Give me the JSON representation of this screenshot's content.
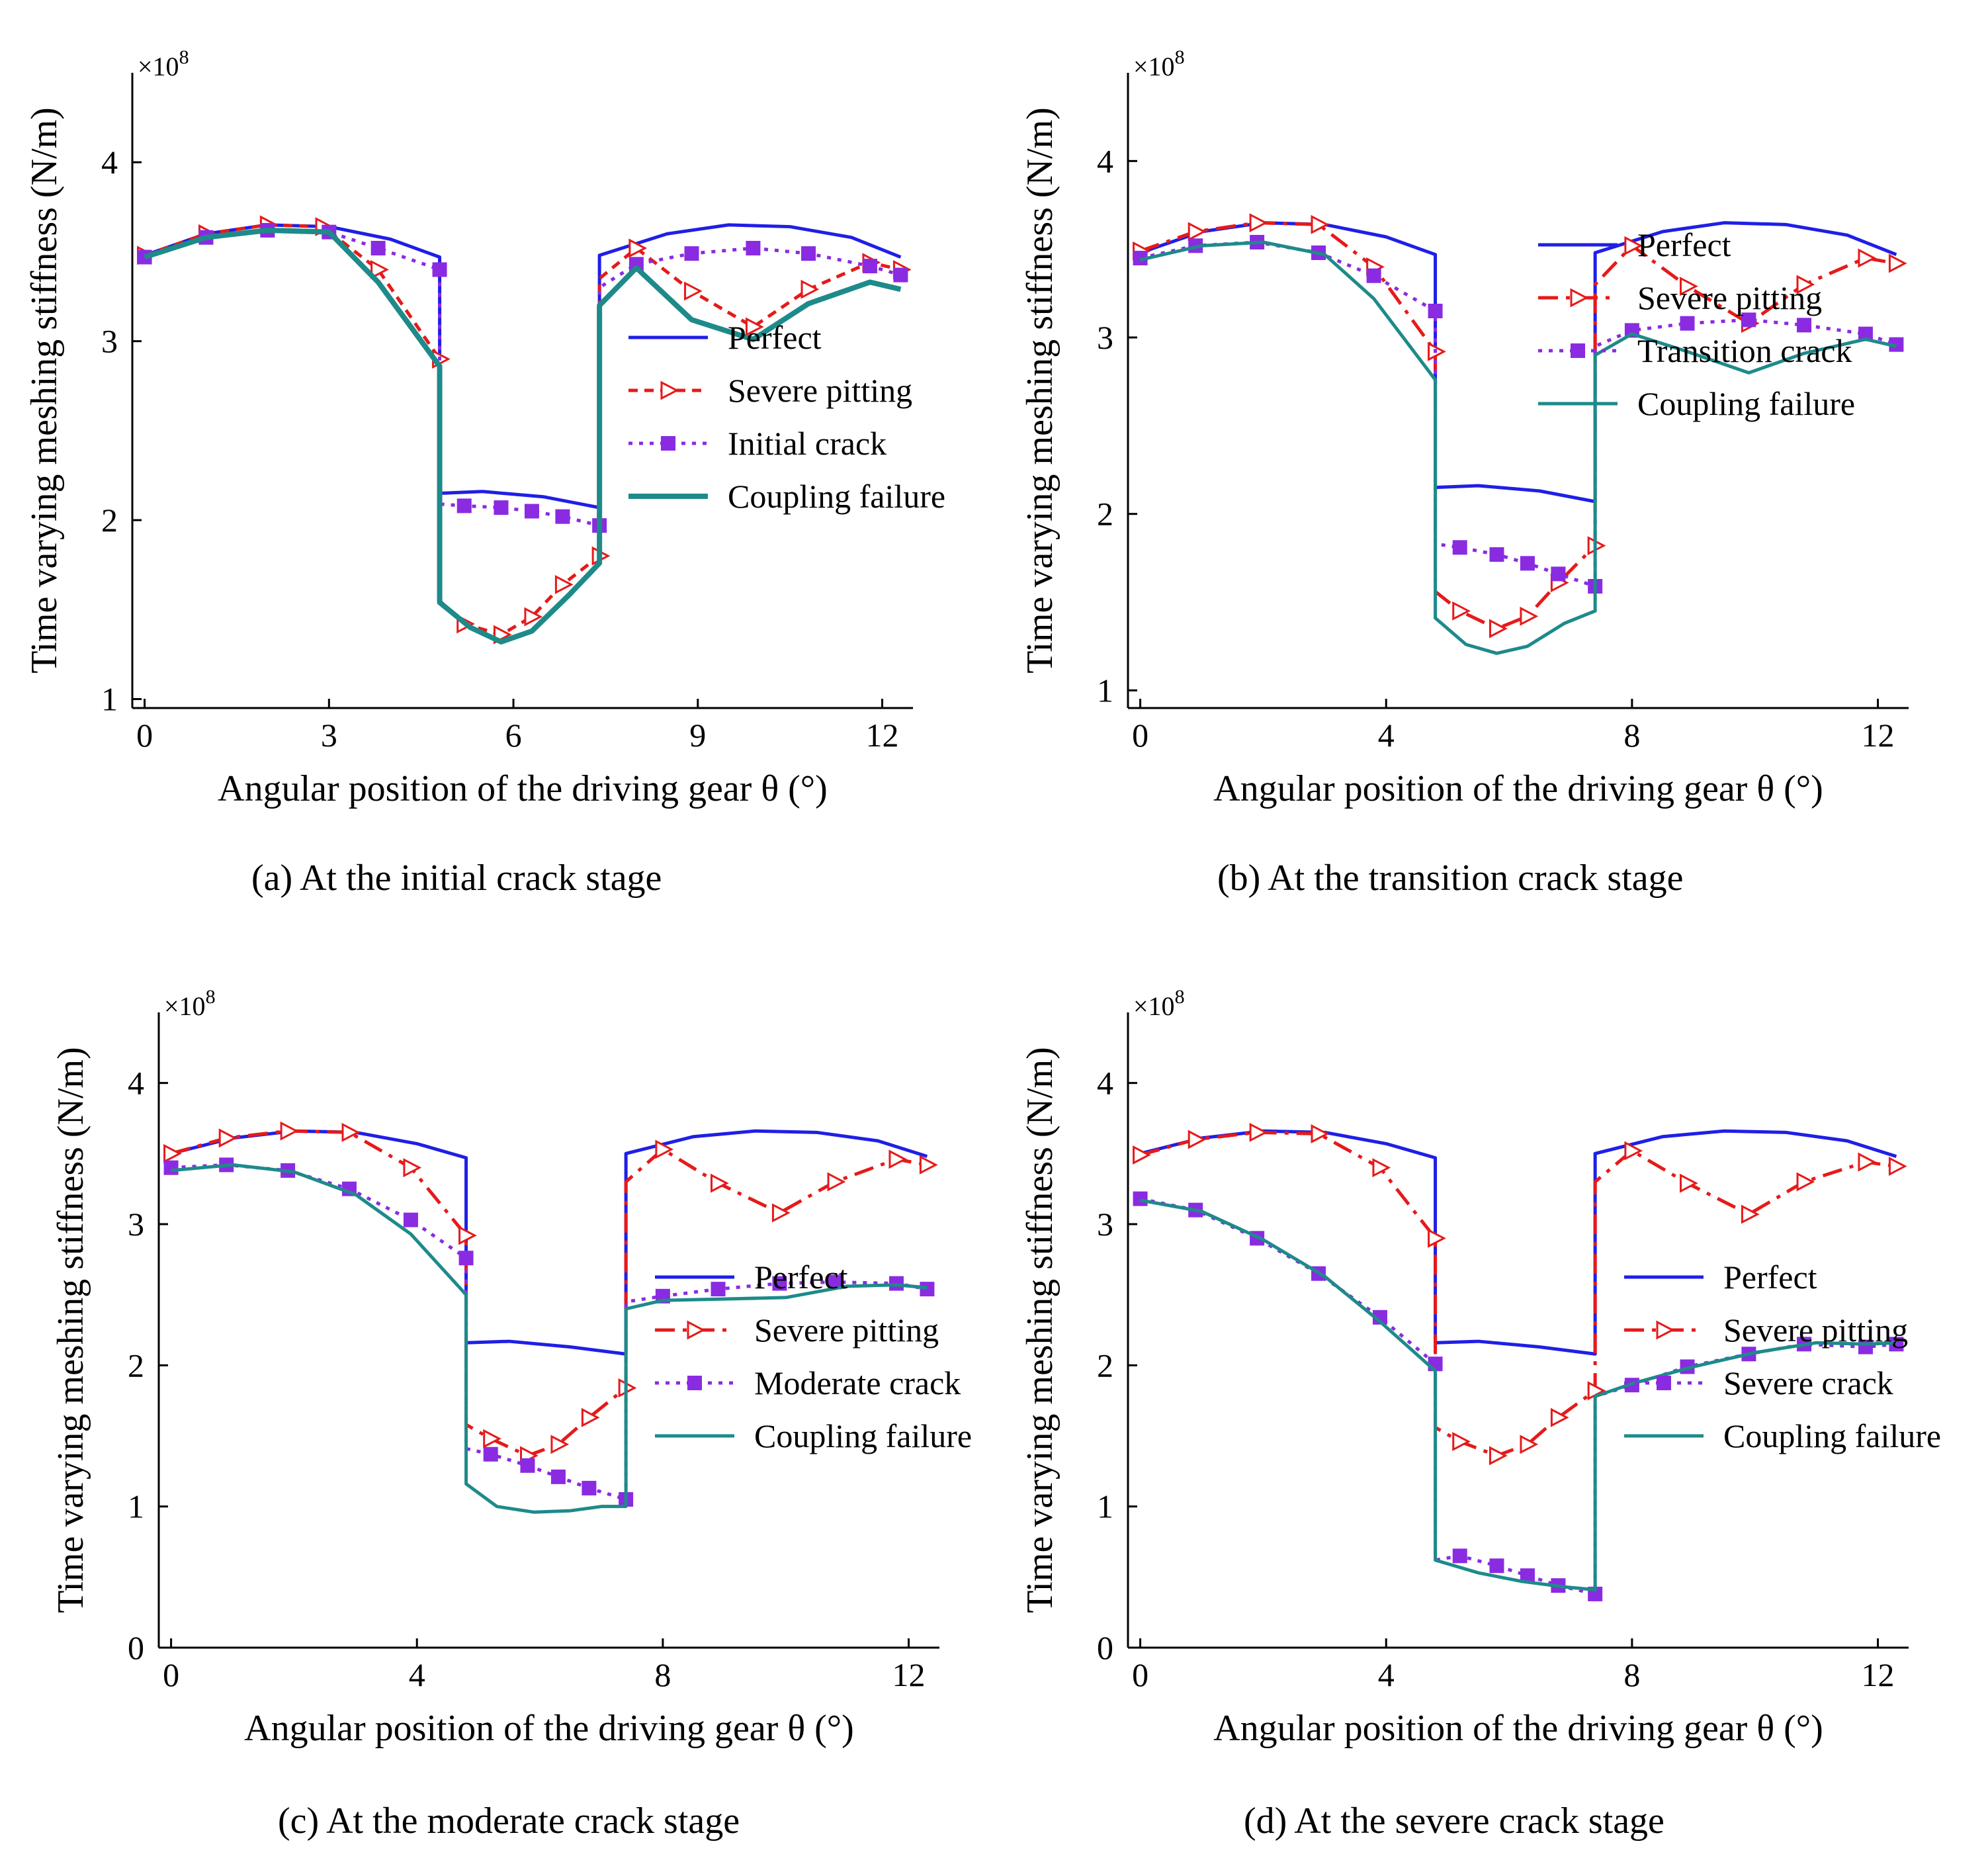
{
  "chart_data": [
    {
      "id": "a",
      "type": "line",
      "caption": "(a) At the initial crack stage",
      "xlabel": "Angular position of the driving gear θ (°)",
      "ylabel": "Time varying meshing stiffness (N/m)",
      "y_multiplier": "×10",
      "y_multiplier_exp": "8",
      "xlim": [
        -0.2,
        12.5
      ],
      "ylim": [
        0.95,
        4.5
      ],
      "xticks": [
        0,
        3,
        6,
        9,
        12
      ],
      "yticks": [
        1,
        2,
        3,
        4
      ],
      "legend_position": "lower-right",
      "series": [
        {
          "name": "Perfect",
          "color": "#1f1fe6",
          "dash": "solid",
          "marker": "none",
          "x": [
            0,
            1,
            2,
            3,
            4,
            4.8,
            4.8,
            5.5,
            6.5,
            7.4,
            7.4,
            8.5,
            9.5,
            10.5,
            11.5,
            12.3
          ],
          "y": [
            3.48,
            3.6,
            3.65,
            3.64,
            3.57,
            3.47,
            2.15,
            2.16,
            2.13,
            2.07,
            3.48,
            3.6,
            3.65,
            3.64,
            3.58,
            3.47
          ]
        },
        {
          "name": "Severe pitting",
          "color": "#e61a1a",
          "dash": "short",
          "marker": "tri-open",
          "x": [
            0,
            1,
            2,
            2.9,
            3.8,
            4.8,
            4.8,
            5.2,
            5.8,
            6.3,
            6.8,
            7.4,
            7.4,
            8,
            8.9,
            9.9,
            10.8,
            11.8,
            12.3
          ],
          "y": [
            3.48,
            3.6,
            3.65,
            3.64,
            3.4,
            2.9,
            1.55,
            1.42,
            1.36,
            1.46,
            1.64,
            1.8,
            3.35,
            3.52,
            3.28,
            3.08,
            3.29,
            3.44,
            3.4
          ]
        },
        {
          "name": "Initial crack",
          "color": "#8a2be2",
          "dash": "dot",
          "marker": "square",
          "x": [
            0,
            1,
            2,
            3,
            3.8,
            4.8,
            4.8,
            5.2,
            5.8,
            6.3,
            6.8,
            7.4,
            7.4,
            8,
            8.9,
            9.9,
            10.8,
            11.8,
            12.3
          ],
          "y": [
            3.47,
            3.58,
            3.62,
            3.61,
            3.52,
            3.4,
            2.09,
            2.08,
            2.07,
            2.05,
            2.02,
            1.97,
            3.3,
            3.43,
            3.49,
            3.52,
            3.49,
            3.42,
            3.37
          ]
        },
        {
          "name": "Coupling failure",
          "color": "#1e8a8a",
          "dash": "solid",
          "marker": "none",
          "x": [
            0,
            1,
            2,
            3,
            3.8,
            4.8,
            4.8,
            5.3,
            5.8,
            6.3,
            6.9,
            7.4,
            7.4,
            8,
            8.9,
            9.9,
            10.8,
            11.8,
            12.3
          ],
          "y": [
            3.47,
            3.58,
            3.62,
            3.61,
            3.33,
            2.86,
            1.54,
            1.4,
            1.32,
            1.38,
            1.58,
            1.76,
            3.2,
            3.41,
            3.12,
            3.01,
            3.21,
            3.33,
            3.29
          ]
        }
      ]
    },
    {
      "id": "b",
      "type": "line",
      "caption": "(b) At the transition crack stage",
      "xlabel": "Angular position of the driving gear θ (°)",
      "ylabel": "Time varying meshing stiffness (N/m)",
      "y_multiplier": "×10",
      "y_multiplier_exp": "8",
      "xlim": [
        -0.2,
        12.5
      ],
      "ylim": [
        0.9,
        4.5
      ],
      "xticks": [
        0,
        4,
        8,
        12
      ],
      "yticks": [
        1,
        2,
        3,
        4
      ],
      "legend_position": "right",
      "series": [
        {
          "name": "Perfect",
          "color": "#1f1fe6",
          "dash": "solid",
          "marker": "none",
          "x": [
            0,
            1,
            2,
            3,
            4,
            4.8,
            4.8,
            5.5,
            6.5,
            7.4,
            7.4,
            8.5,
            9.5,
            10.5,
            11.5,
            12.3
          ],
          "y": [
            3.48,
            3.6,
            3.65,
            3.64,
            3.57,
            3.47,
            2.15,
            2.16,
            2.13,
            2.07,
            3.48,
            3.6,
            3.65,
            3.64,
            3.58,
            3.47
          ]
        },
        {
          "name": "Severe pitting",
          "color": "#e61a1a",
          "dash": "dashdot",
          "marker": "tri-open",
          "x": [
            0,
            0.9,
            1.9,
            2.9,
            3.8,
            4.8,
            4.8,
            5.2,
            5.8,
            6.3,
            6.8,
            7.4,
            7.4,
            8,
            8.9,
            9.9,
            10.8,
            11.8,
            12.3
          ],
          "y": [
            3.49,
            3.6,
            3.65,
            3.64,
            3.4,
            2.92,
            1.56,
            1.45,
            1.35,
            1.42,
            1.61,
            1.82,
            3.3,
            3.52,
            3.29,
            3.08,
            3.3,
            3.45,
            3.42
          ]
        },
        {
          "name": "Transition crack",
          "color": "#8a2be2",
          "dash": "dot",
          "marker": "square",
          "x": [
            0,
            0.9,
            1.9,
            2.9,
            3.8,
            4.8,
            4.8,
            5.2,
            5.8,
            6.3,
            6.8,
            7.4,
            7.4,
            8,
            8.9,
            9.9,
            10.8,
            11.8,
            12.3
          ],
          "y": [
            3.45,
            3.52,
            3.54,
            3.48,
            3.35,
            3.15,
            1.83,
            1.81,
            1.77,
            1.72,
            1.66,
            1.59,
            2.95,
            3.04,
            3.08,
            3.1,
            3.07,
            3.02,
            2.96
          ]
        },
        {
          "name": "Coupling failure",
          "color": "#1e8a8a",
          "dash": "solid",
          "marker": "none",
          "x": [
            0,
            1,
            2,
            3,
            3.8,
            4.8,
            4.8,
            5.3,
            5.8,
            6.3,
            6.9,
            7.4,
            7.4,
            8,
            8.9,
            9.9,
            10.8,
            11.8,
            12.3
          ],
          "y": [
            3.44,
            3.52,
            3.54,
            3.47,
            3.22,
            2.76,
            1.41,
            1.26,
            1.21,
            1.25,
            1.38,
            1.45,
            2.9,
            3.02,
            2.92,
            2.8,
            2.91,
            2.99,
            2.95
          ]
        }
      ]
    },
    {
      "id": "c",
      "type": "line",
      "caption": "(c) At the moderate crack stage",
      "xlabel": "Angular position of the driving gear θ (°)",
      "ylabel": "Time varying meshing stiffness (N/m)",
      "y_multiplier": "×10",
      "y_multiplier_exp": "8",
      "xlim": [
        -0.2,
        12.5
      ],
      "ylim": [
        0,
        4.5
      ],
      "xticks": [
        0,
        4,
        8,
        12
      ],
      "yticks": [
        0,
        1,
        2,
        3,
        4
      ],
      "legend_position": "lower-right",
      "series": [
        {
          "name": "Perfect",
          "color": "#1f1fe6",
          "dash": "solid",
          "marker": "none",
          "x": [
            0,
            1,
            2,
            3,
            4,
            4.8,
            4.8,
            5.5,
            6.5,
            7.4,
            7.4,
            8.5,
            9.5,
            10.5,
            11.5,
            12.3
          ],
          "y": [
            3.5,
            3.61,
            3.66,
            3.65,
            3.57,
            3.47,
            2.16,
            2.17,
            2.13,
            2.08,
            3.5,
            3.62,
            3.66,
            3.65,
            3.59,
            3.48
          ]
        },
        {
          "name": "Severe pitting",
          "color": "#e61a1a",
          "dash": "dashdot",
          "marker": "tri-open",
          "x": [
            0,
            0.9,
            1.9,
            2.9,
            3.9,
            4.8,
            4.8,
            5.2,
            5.8,
            6.3,
            6.8,
            7.4,
            7.4,
            8,
            8.9,
            9.9,
            10.8,
            11.8,
            12.3
          ],
          "y": [
            3.5,
            3.61,
            3.66,
            3.65,
            3.4,
            2.92,
            1.58,
            1.48,
            1.36,
            1.44,
            1.63,
            1.84,
            3.3,
            3.53,
            3.29,
            3.08,
            3.3,
            3.46,
            3.42
          ]
        },
        {
          "name": "Moderate crack",
          "color": "#8a2be2",
          "dash": "dot",
          "marker": "square",
          "x": [
            0,
            0.9,
            1.9,
            2.9,
            3.9,
            4.8,
            4.8,
            5.2,
            5.8,
            6.3,
            6.8,
            7.4,
            7.4,
            8,
            8.9,
            9.9,
            10.8,
            11.8,
            12.3
          ],
          "y": [
            3.4,
            3.42,
            3.38,
            3.25,
            3.03,
            2.76,
            1.41,
            1.37,
            1.29,
            1.21,
            1.13,
            1.05,
            2.45,
            2.49,
            2.54,
            2.58,
            2.59,
            2.58,
            2.54
          ]
        },
        {
          "name": "Coupling failure",
          "color": "#1e8a8a",
          "dash": "solid",
          "marker": "none",
          "x": [
            0,
            1,
            2,
            3,
            3.9,
            4.8,
            4.8,
            5.3,
            5.9,
            6.5,
            7,
            7.4,
            7.4,
            8,
            9,
            10,
            11,
            11.8,
            12.3
          ],
          "y": [
            3.38,
            3.42,
            3.37,
            3.21,
            2.93,
            2.5,
            1.16,
            1.0,
            0.96,
            0.97,
            1.0,
            1.0,
            2.4,
            2.46,
            2.47,
            2.48,
            2.56,
            2.57,
            2.55
          ]
        }
      ]
    },
    {
      "id": "d",
      "type": "line",
      "caption": "(d) At the severe crack stage",
      "xlabel": "Angular position of the driving gear θ (°)",
      "ylabel": "Time varying meshing stiffness (N/m)",
      "y_multiplier": "×10",
      "y_multiplier_exp": "8",
      "xlim": [
        -0.2,
        12.5
      ],
      "ylim": [
        0,
        4.5
      ],
      "xticks": [
        0,
        4,
        8,
        12
      ],
      "yticks": [
        0,
        1,
        2,
        3,
        4
      ],
      "legend_position": "lower-right",
      "series": [
        {
          "name": "Perfect",
          "color": "#1f1fe6",
          "dash": "solid",
          "marker": "none",
          "x": [
            0,
            1,
            2,
            3,
            4,
            4.8,
            4.8,
            5.5,
            6.5,
            7.4,
            7.4,
            8.5,
            9.5,
            10.5,
            11.5,
            12.3
          ],
          "y": [
            3.5,
            3.61,
            3.66,
            3.65,
            3.57,
            3.47,
            2.16,
            2.17,
            2.13,
            2.08,
            3.5,
            3.62,
            3.66,
            3.65,
            3.59,
            3.48
          ]
        },
        {
          "name": "Severe pitting",
          "color": "#e61a1a",
          "dash": "dashdot",
          "marker": "tri-open",
          "x": [
            0,
            0.9,
            1.9,
            2.9,
            3.9,
            4.8,
            4.8,
            5.2,
            5.8,
            6.3,
            6.8,
            7.4,
            7.4,
            8,
            8.9,
            9.9,
            10.8,
            11.8,
            12.3
          ],
          "y": [
            3.49,
            3.6,
            3.65,
            3.64,
            3.4,
            2.9,
            1.56,
            1.46,
            1.36,
            1.44,
            1.63,
            1.82,
            3.3,
            3.52,
            3.29,
            3.07,
            3.3,
            3.44,
            3.41
          ]
        },
        {
          "name": "Severe crack",
          "color": "#8a2be2",
          "dash": "dot",
          "marker": "square",
          "x": [
            0,
            0.9,
            1.9,
            2.9,
            3.9,
            4.8,
            4.8,
            5.2,
            5.8,
            6.3,
            6.8,
            7.4,
            7.4,
            8,
            8.9,
            9.9,
            10.8,
            11.8,
            12.3
          ],
          "y": [
            3.18,
            3.1,
            2.9,
            2.65,
            2.34,
            2.01,
            0.62,
            0.65,
            0.58,
            0.51,
            0.44,
            0.38,
            1.78,
            1.86,
            1.99,
            2.08,
            2.15,
            2.13,
            2.15
          ]
        },
        {
          "name": "Coupling failure",
          "color": "#1e8a8a",
          "dash": "solid",
          "marker": "none",
          "x": [
            0,
            1,
            2,
            3,
            3.9,
            4.8,
            4.8,
            5.5,
            6.2,
            6.9,
            7.4,
            7.4,
            8,
            9,
            10,
            11,
            11.8,
            12.3
          ],
          "y": [
            3.17,
            3.09,
            2.89,
            2.63,
            2.31,
            1.96,
            0.62,
            0.53,
            0.47,
            0.43,
            0.41,
            1.78,
            1.87,
            1.99,
            2.09,
            2.16,
            2.15,
            2.16
          ]
        }
      ]
    }
  ]
}
